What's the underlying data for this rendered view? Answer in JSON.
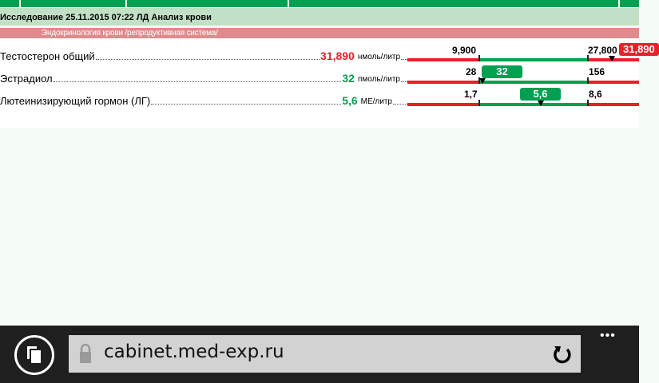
{
  "header": {
    "study_title": "Исследование 25.11.2015 07:22 ЛД Анализ крови",
    "section": "Эндокринология крови /репродуктивная система/"
  },
  "colors": {
    "normal": "#00a050",
    "abnormal": "#e8202a",
    "header_green": "#00a050"
  },
  "results": [
    {
      "name": "Тестостерон общий",
      "value": "31,890",
      "unit": "нмоль/литр",
      "low": "9,900",
      "high": "27,800",
      "badge": "31,890",
      "status": "high"
    },
    {
      "name": "Эстрадиол",
      "value": "32",
      "unit": "пмоль/литр",
      "low": "28",
      "high": "156",
      "badge": "32",
      "status": "normal"
    },
    {
      "name": "Лютеинизирующий гормон (ЛГ)",
      "value": "5,6",
      "unit": "МЕ/литр",
      "low": "1,7",
      "high": "8,6",
      "badge": "5,6",
      "status": "normal"
    }
  ],
  "browser": {
    "url": "cabinet.med-exp.ru",
    "tabs_icon": "tabs-icon",
    "lock_icon": "lock-icon",
    "refresh_icon": "refresh-icon",
    "more_label": "•••"
  }
}
